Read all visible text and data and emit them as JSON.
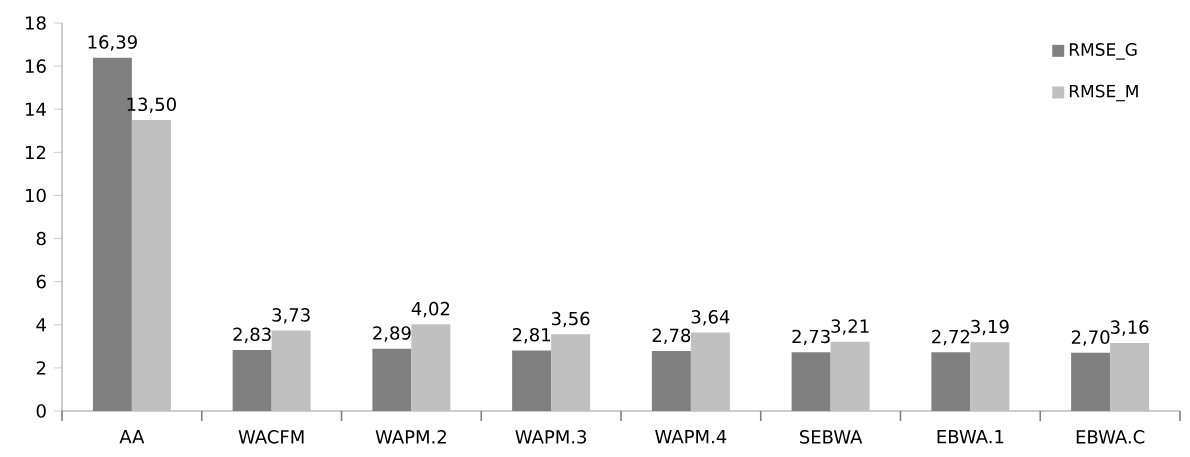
{
  "chart_data": {
    "type": "bar",
    "categories": [
      "AA",
      "WACFM",
      "WAPM.2",
      "WAPM.3",
      "WAPM.4",
      "SEBWA",
      "EBWA.1",
      "EBWA.C"
    ],
    "series": [
      {
        "name": "RMSE_G",
        "color": "#808080",
        "values": [
          16.39,
          2.83,
          2.89,
          2.81,
          2.78,
          2.73,
          2.72,
          2.7
        ],
        "value_labels": [
          "16,39",
          "2,83",
          "2,89",
          "2,81",
          "2,78",
          "2,73",
          "2,72",
          "2,70"
        ]
      },
      {
        "name": "RMSE_M",
        "color": "#c0c0c0",
        "values": [
          13.5,
          3.73,
          4.02,
          3.56,
          3.64,
          3.21,
          3.19,
          3.16
        ],
        "value_labels": [
          "13,50",
          "3,73",
          "4,02",
          "3,56",
          "3,64",
          "3,21",
          "3,19",
          "3,16"
        ]
      }
    ],
    "ylim": [
      0,
      18
    ],
    "yticks": [
      0,
      2,
      4,
      6,
      8,
      10,
      12,
      14,
      16,
      18
    ],
    "grid": false,
    "legend": "top right"
  }
}
